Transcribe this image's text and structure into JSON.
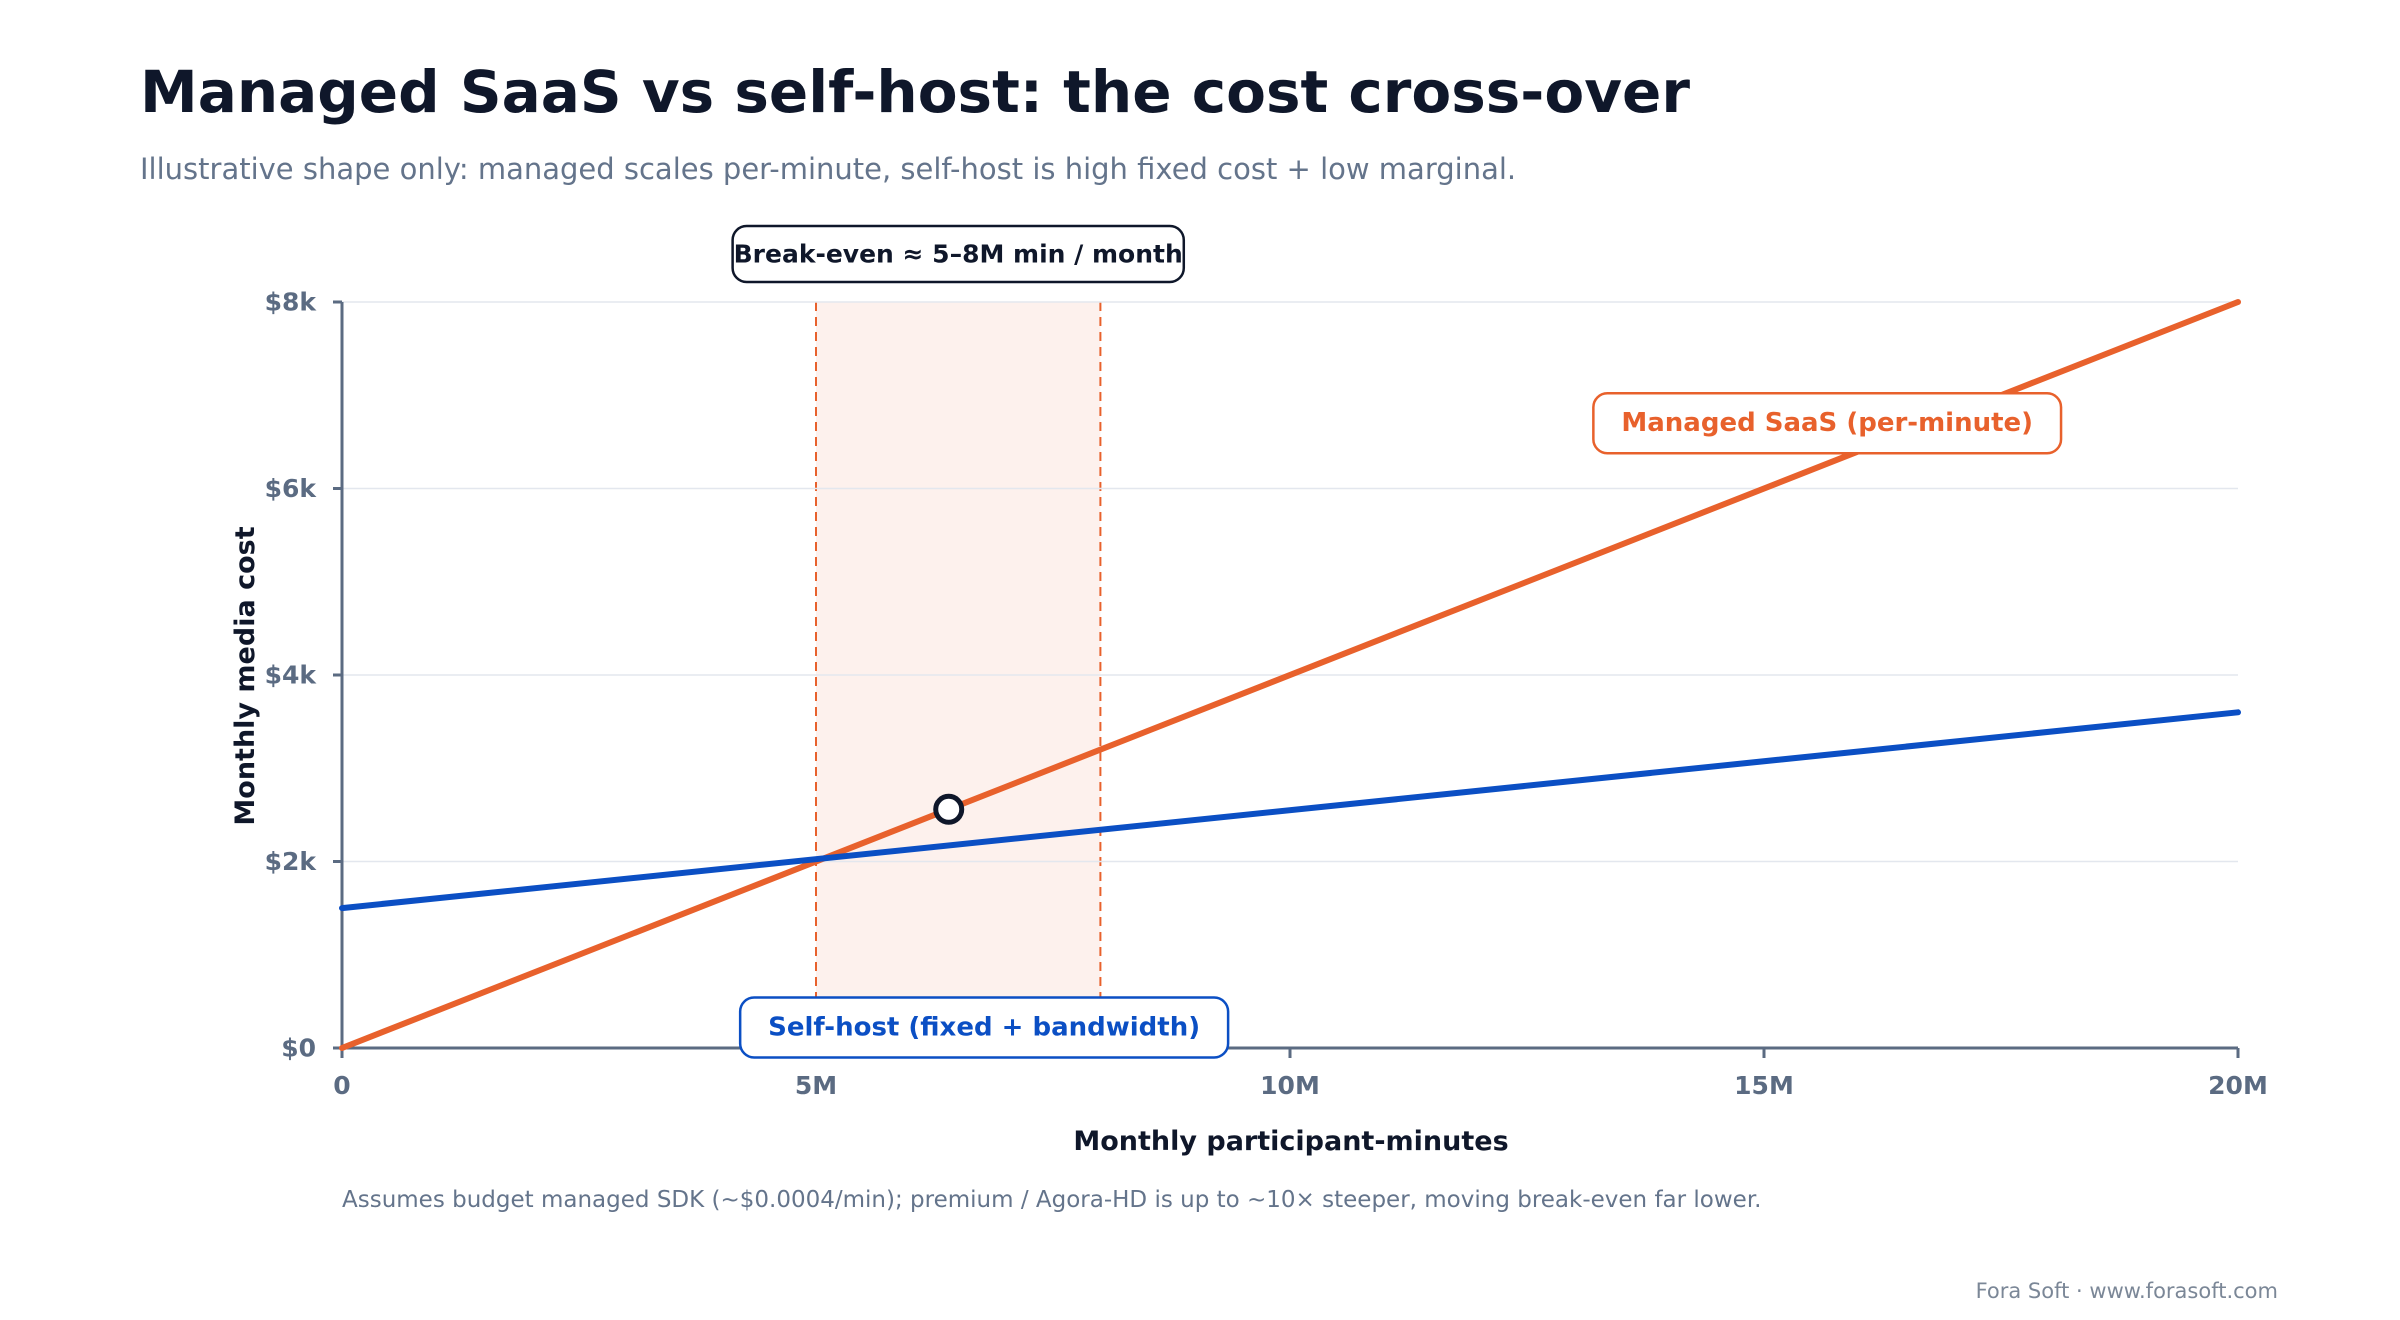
{
  "header": {
    "title": "Managed SaaS vs self-host: the cost cross-over",
    "subtitle": "Illustrative shape only: managed scales per-minute, self-host is high fixed cost + low marginal."
  },
  "chart_data": {
    "type": "line",
    "xlabel": "Monthly participant-minutes",
    "ylabel": "Monthly media cost",
    "xlim": [
      0,
      20
    ],
    "ylim": [
      0,
      8
    ],
    "x_ticks": [
      {
        "value": 0,
        "label": "0"
      },
      {
        "value": 5,
        "label": "5M"
      },
      {
        "value": 10,
        "label": "10M"
      },
      {
        "value": 15,
        "label": "15M"
      },
      {
        "value": 20,
        "label": "20M"
      }
    ],
    "y_ticks": [
      {
        "value": 0,
        "label": "$0"
      },
      {
        "value": 2,
        "label": "$2k"
      },
      {
        "value": 4,
        "label": "$4k"
      },
      {
        "value": 6,
        "label": "$6k"
      },
      {
        "value": 8,
        "label": "$8k"
      }
    ],
    "grid": "horizontal",
    "series": [
      {
        "name": "Managed SaaS (per-minute)",
        "color": "#e8612c",
        "x": [
          0,
          20
        ],
        "y": [
          0,
          8
        ],
        "label_at": [
          13.2,
          6.7
        ]
      },
      {
        "name": "Self-host (fixed + bandwidth)",
        "color": "#0b4fc4",
        "x": [
          0,
          20
        ],
        "y": [
          1.5,
          3.6
        ],
        "label_at": [
          4.2,
          0.22
        ]
      }
    ],
    "break_even_band": {
      "x_start": 5,
      "x_end": 8,
      "label": "Break-even ≈ 5–8M min / month",
      "fill": "#fdf1ed",
      "line_color": "#e8612c"
    },
    "marker": {
      "x": 6.4,
      "y": 2.56
    },
    "footnote": "Assumes budget managed SDK (~$0.0004/min); premium / Agora-HD is up to ~10× steeper, moving break-even far lower."
  },
  "footer": {
    "credit": "Fora Soft · www.forasoft.com"
  },
  "colors": {
    "title": "#0f172a",
    "muted": "#64748b",
    "axis": "#5b6b82",
    "grid": "#e3e7ee"
  }
}
